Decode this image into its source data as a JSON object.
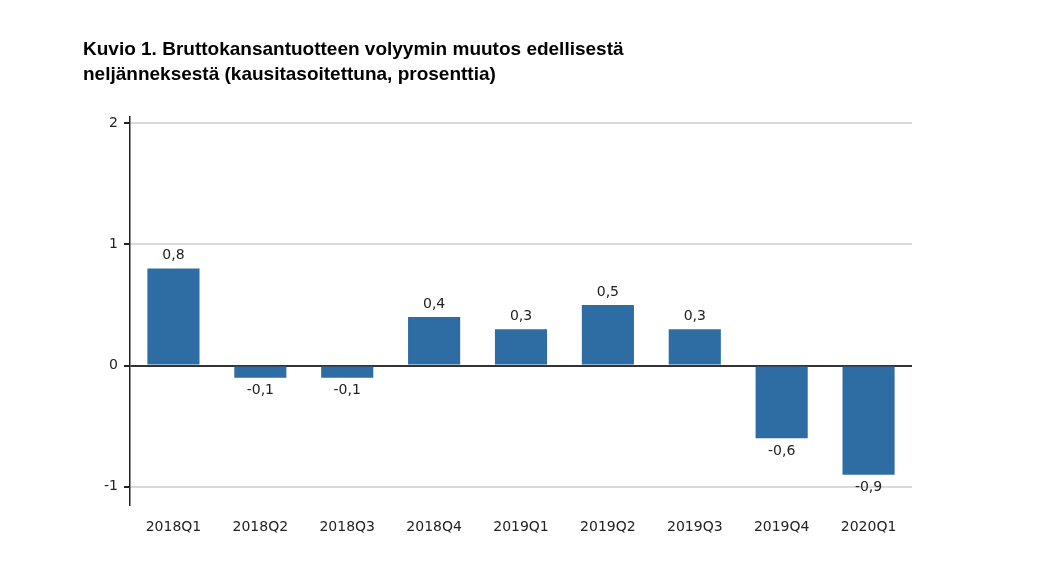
{
  "chart_data": {
    "type": "bar",
    "title": "Kuvio 1. Bruttokansantuotteen volyymin muutos edellisestä neljänneksestä (kausitasoitettuna, prosenttia)",
    "categories": [
      "2018Q1",
      "2018Q2",
      "2018Q3",
      "2018Q4",
      "2019Q1",
      "2019Q2",
      "2019Q3",
      "2019Q4",
      "2020Q1"
    ],
    "values": [
      0.8,
      -0.1,
      -0.1,
      0.4,
      0.3,
      0.5,
      0.3,
      -0.6,
      -0.9
    ],
    "value_labels": [
      "0,8",
      "-0,1",
      "-0,1",
      "0,4",
      "0,3",
      "0,5",
      "0,3",
      "-0,6",
      "-0,9"
    ],
    "color": "#2e6da4",
    "ylim": [
      -1.15,
      2.05
    ],
    "yticks": [
      -1,
      0,
      1,
      2
    ],
    "grid": "y",
    "legend": false
  }
}
